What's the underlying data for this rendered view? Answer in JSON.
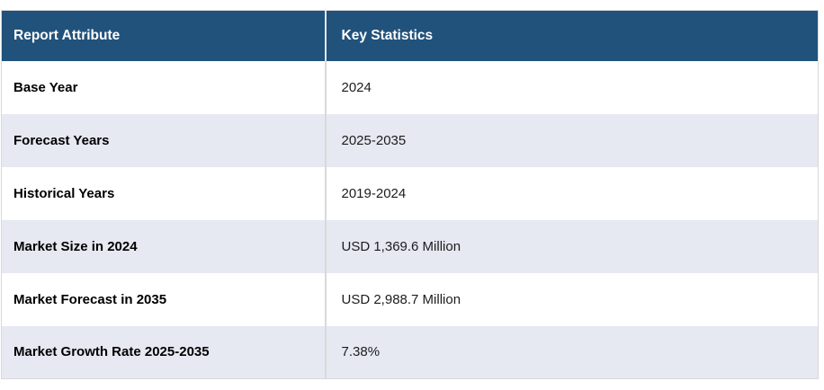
{
  "table": {
    "columns": [
      {
        "label": "Report Attribute"
      },
      {
        "label": "Key Statistics"
      }
    ],
    "rows": [
      {
        "attribute": "Base Year",
        "value": "2024"
      },
      {
        "attribute": "Forecast Years",
        "value": "2025-2035"
      },
      {
        "attribute": "Historical Years",
        "value": "2019-2024"
      },
      {
        "attribute": "Market Size in 2024",
        "value": "USD 1,369.6 Million"
      },
      {
        "attribute": "Market Forecast in 2035",
        "value": "USD 2,988.7 Million"
      },
      {
        "attribute": "Market Growth Rate 2025-2035",
        "value": "7.38%"
      }
    ]
  },
  "colors": {
    "header_bg": "#21527B",
    "header_text": "#FFFFFF",
    "row_bg": "#FFFFFF",
    "row_alt_bg": "#E6E8F2",
    "divider": "#D9D9D9",
    "attribute_text": "#000000",
    "value_text": "#1C1C1C"
  }
}
